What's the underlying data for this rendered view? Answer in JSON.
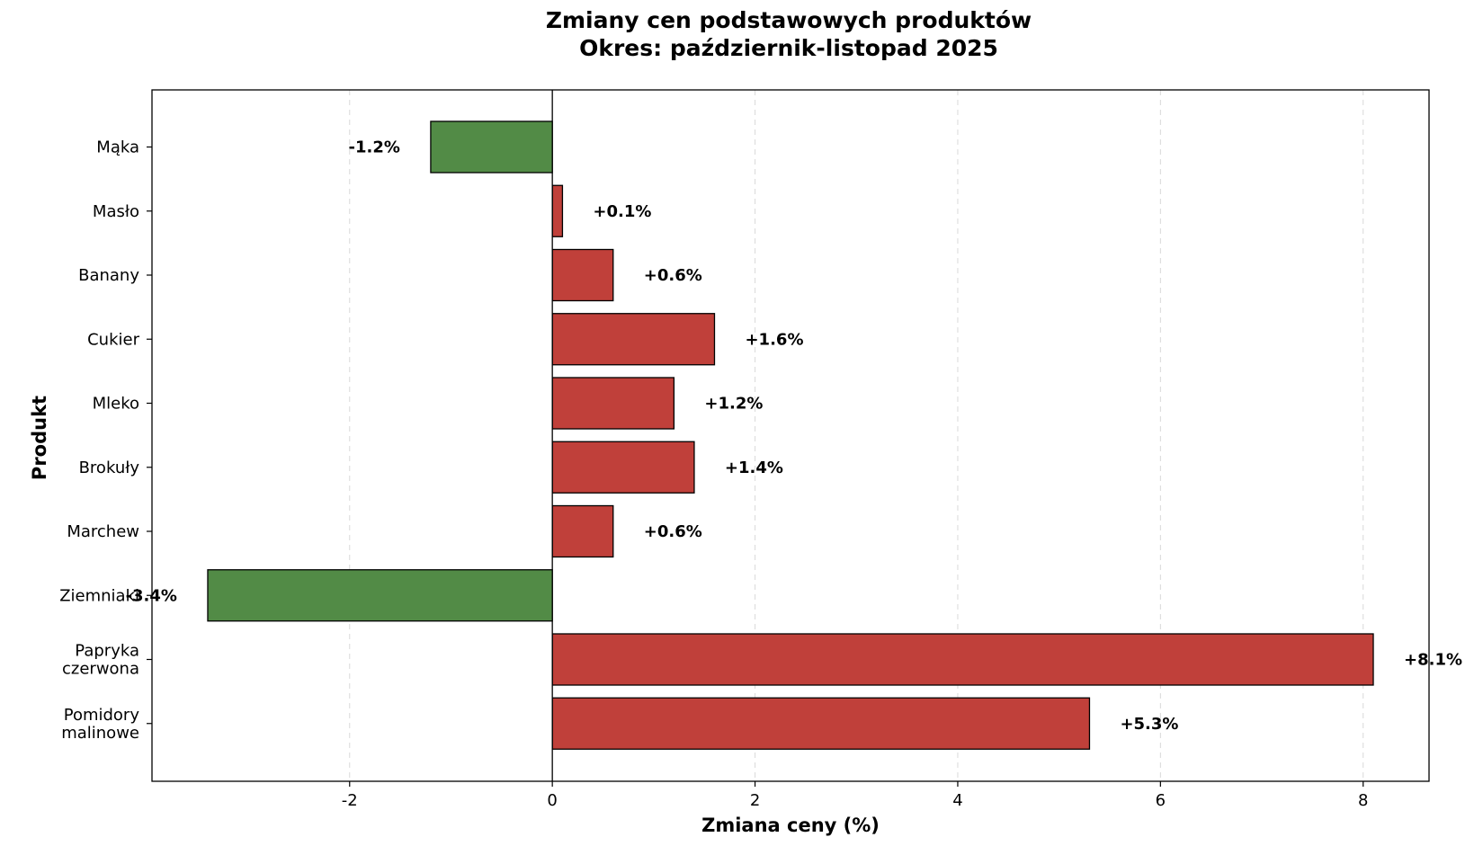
{
  "chart_data": {
    "type": "bar",
    "orientation": "horizontal",
    "title": "Zmiany cen podstawowych produktów",
    "subtitle": "Okres: październik-listopad 2025",
    "xlabel": "Zmiana ceny (%)",
    "ylabel": "Produkt",
    "xlim": [
      -3.95,
      8.65
    ],
    "xticks": [
      -2,
      0,
      2,
      4,
      6,
      8
    ],
    "xtick_labels": [
      "-2",
      "0",
      "2",
      "4",
      "6",
      "8"
    ],
    "grid": "x-dashed",
    "categories": [
      [
        "Mąka"
      ],
      [
        "Masło"
      ],
      [
        "Banany"
      ],
      [
        "Cukier"
      ],
      [
        "Mleko"
      ],
      [
        "Brokuły"
      ],
      [
        "Marchew"
      ],
      [
        "Ziemniaki"
      ],
      [
        "Papryka",
        "czerwona"
      ],
      [
        "Pomidory",
        "malinowe"
      ]
    ],
    "values": [
      -1.2,
      0.1,
      0.6,
      1.6,
      1.2,
      1.4,
      0.6,
      -3.4,
      8.1,
      5.3
    ],
    "labels": [
      "-1.2%",
      "+0.1%",
      "+0.6%",
      "+1.6%",
      "+1.2%",
      "+1.4%",
      "+0.6%",
      "-3.4%",
      "+8.1%",
      "+5.3%"
    ],
    "colors": {
      "increase": "#c0403a",
      "decrease": "#528b46",
      "edge": "#000000",
      "grid": "#d9d9d9"
    }
  }
}
